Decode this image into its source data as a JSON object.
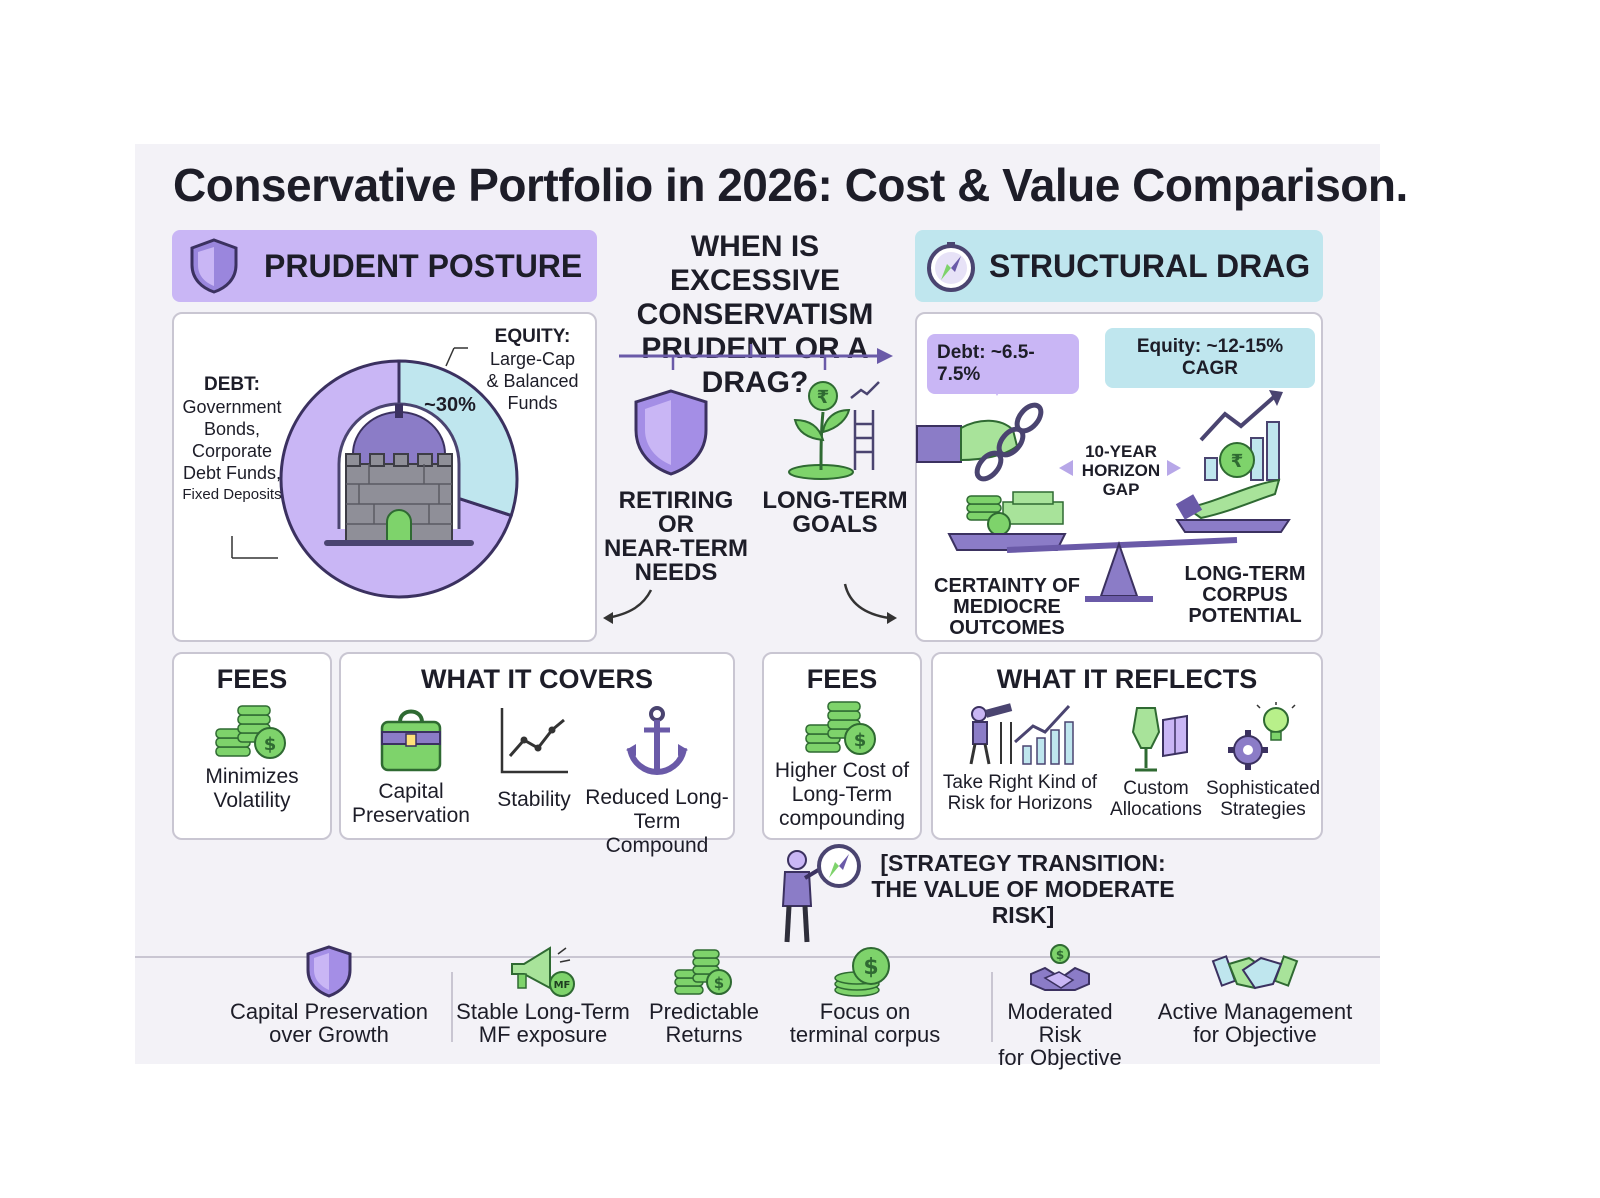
{
  "title": "Conservative Portfolio in 2026: Cost & Value Comparison.",
  "left_panel": {
    "header": "PRUDENT POSTURE",
    "debt_label": "DEBT:",
    "debt_items": [
      "Government",
      "Bonds,",
      "Corporate",
      "Debt Funds,",
      "Fixed Deposits"
    ],
    "equity_label": "EQUITY:",
    "equity_items": [
      "Large-Cap",
      "& Balanced",
      "Funds"
    ],
    "equity_pct_label": "~30%"
  },
  "chart_data": {
    "type": "pie",
    "categories": [
      "DEBT",
      "EQUITY"
    ],
    "values": [
      70,
      30
    ],
    "colors": [
      "#c9b6f5",
      "#bfe6ee"
    ]
  },
  "center": {
    "question_lines": [
      "WHEN IS EXCESSIVE",
      "CONSERVATISM",
      "PRUDENT OR A DRAG?"
    ],
    "left_case": [
      "RETIRING OR",
      "NEAR-TERM",
      "NEEDS"
    ],
    "right_case": [
      "LONG-TERM",
      "GOALS"
    ],
    "rupee_symbol": "₹"
  },
  "right_panel": {
    "header": "STRUCTURAL DRAG",
    "debt_bubble": "Debt: ~6.5-7.5%",
    "equity_bubble": "Equity: ~12-15% CAGR",
    "horizon_lines": [
      "10-YEAR",
      "HORIZON",
      "GAP"
    ],
    "left_outcome": [
      "CERTAINTY OF",
      "MEDIOCRE",
      "OUTCOMES"
    ],
    "right_outcome": [
      "LONG-TERM",
      "CORPUS",
      "POTENTIAL"
    ]
  },
  "fees_left": {
    "title": "FEES",
    "caption": [
      "Minimizes",
      "Volatility"
    ]
  },
  "covers": {
    "title": "WHAT IT COVERS",
    "items": [
      {
        "label": [
          "Capital",
          "Preservation"
        ],
        "icon": "briefcase-icon"
      },
      {
        "label": [
          "Stability"
        ],
        "icon": "line-chart-icon"
      },
      {
        "label": [
          "Reduced Long-",
          "Term Compound"
        ],
        "icon": "anchor-icon"
      }
    ]
  },
  "fees_right": {
    "title": "FEES",
    "caption": [
      "Higher Cost of",
      "Long-Term",
      "compounding"
    ]
  },
  "reflects": {
    "title": "WHAT IT REFLECTS",
    "items": [
      {
        "label": [
          "Take Right Kind of",
          "Risk for Horizons"
        ],
        "icon": "telescope-icon"
      },
      {
        "label": [
          "Custom",
          "Allocations"
        ],
        "icon": "mannequin-icon"
      },
      {
        "label": [
          "Sophisticated",
          "Strategies"
        ],
        "icon": "gear-bulb-icon"
      }
    ]
  },
  "transition": {
    "lines": [
      "[STRATEGY TRANSITION:",
      "THE VALUE OF MODERATE RISK]"
    ]
  },
  "bottom": {
    "mf_badge": "MF",
    "items": [
      {
        "label": [
          "Capital Preservation",
          "over Growth"
        ],
        "icon": "shield-icon"
      },
      {
        "label": [
          "Stable Long-Term",
          "MF exposure"
        ],
        "icon": "megaphone-icon"
      },
      {
        "label": [
          "Predictable",
          "Returns"
        ],
        "icon": "coins-icon"
      },
      {
        "label": [
          "Focus on",
          "terminal corpus"
        ],
        "icon": "dollar-coins-icon"
      },
      {
        "label": [
          "Moderated Risk",
          "for Objective"
        ],
        "icon": "handshake-dollar-icon"
      },
      {
        "label": [
          "Active Management",
          "for Objective"
        ],
        "icon": "handshake-icon"
      }
    ]
  },
  "colors": {
    "purple": "#c9b6f5",
    "dark_purple": "#6a5aa8",
    "teal": "#bfe6ee",
    "green": "#7ed36b",
    "dark_green": "#2f8a3a"
  }
}
